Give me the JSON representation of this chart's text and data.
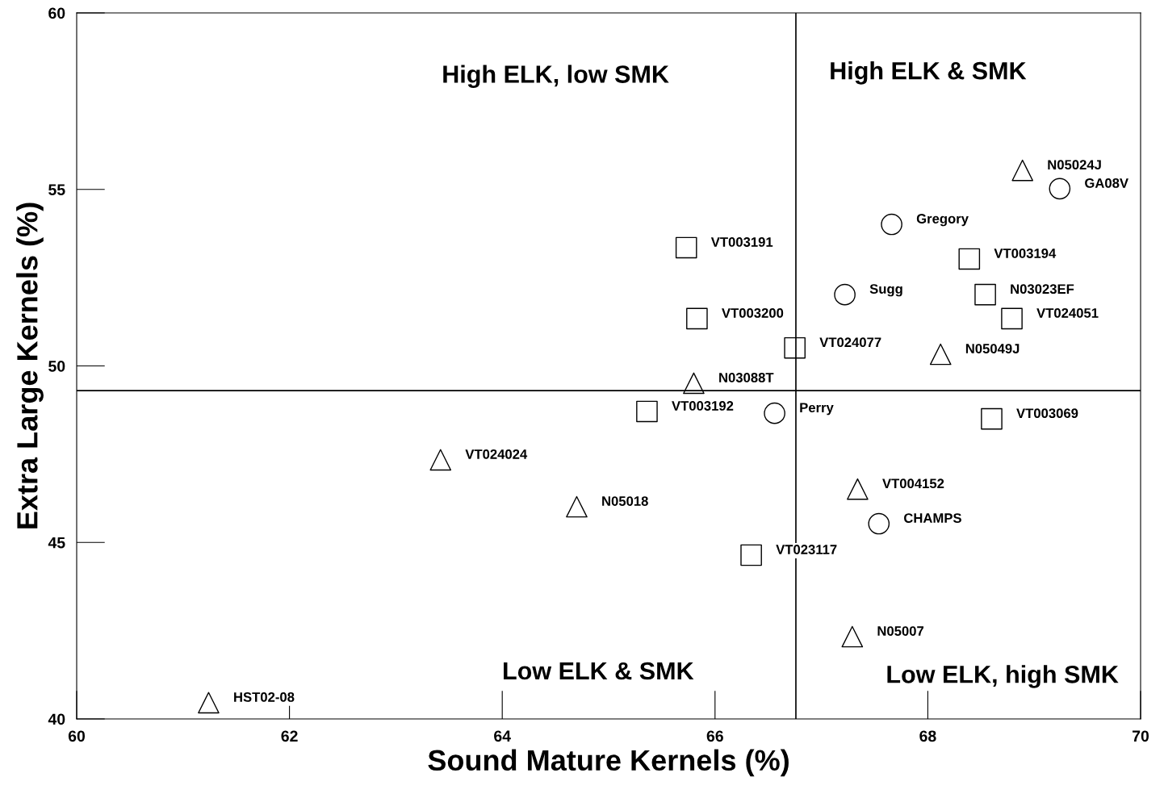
{
  "chart_data": {
    "type": "scatter",
    "xlabel": "Sound Mature Kernels (%)",
    "ylabel": "Extra Large Kernels (%)",
    "xlim": [
      60,
      70
    ],
    "xticks": [
      60,
      62,
      64,
      66,
      68,
      70
    ],
    "ylim": [
      40,
      60
    ],
    "yticks": [
      40,
      45,
      50,
      55,
      60
    ],
    "grid": false,
    "legend": false,
    "series": [
      {
        "color": "#000000",
        "marker": "circle",
        "x": [
          69.24,
          67.66,
          67.22,
          66.56,
          67.54
        ],
        "values": [
          55.02,
          54.01,
          52.02,
          48.66,
          45.53
        ],
        "value_labels": [
          "GA08V",
          "Gregory",
          "Sugg",
          "Perry",
          "CHAMPS"
        ]
      },
      {
        "color": "#000000",
        "marker": "square",
        "x": [
          65.73,
          65.83,
          66.75,
          68.39,
          68.54,
          68.79,
          65.36,
          68.6,
          66.34
        ],
        "values": [
          53.35,
          51.34,
          50.51,
          53.03,
          52.02,
          51.34,
          48.71,
          48.5,
          44.64
        ],
        "value_labels": [
          "VT003191",
          "VT003200",
          "VT024077",
          "VT003194",
          "N03023EF",
          "VT024051",
          "VT003192",
          "VT003069",
          "VT023117"
        ]
      },
      {
        "color": "#000000",
        "marker": "triangle",
        "x": [
          68.89,
          68.12,
          65.8,
          63.42,
          64.7,
          67.34,
          67.29,
          61.24
        ],
        "values": [
          55.54,
          50.33,
          49.51,
          47.34,
          46.01,
          46.51,
          42.33,
          40.46
        ],
        "value_labels": [
          "N05024J",
          "N05049J",
          "N03088T",
          "VT024024",
          "N05018",
          "VT004152",
          "N05007",
          "HST02-08"
        ]
      }
    ],
    "ref_lines": [
      {
        "axis": "x",
        "value": 66.76,
        "color": "#000000"
      },
      {
        "axis": "y",
        "value": 49.3,
        "color": "#000000"
      }
    ],
    "annotations": [
      "High ELK, low SMK",
      "High ELK & SMK",
      "Low ELK & SMK",
      "Low ELK, high SMK"
    ]
  }
}
